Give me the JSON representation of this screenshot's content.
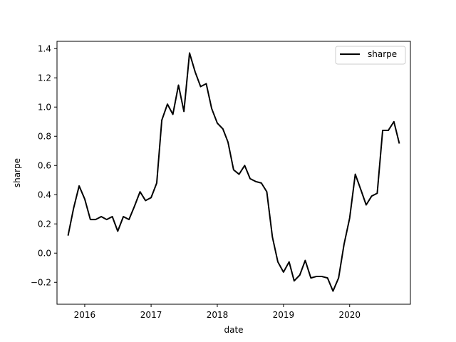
{
  "chart_data": {
    "type": "line",
    "title": "",
    "xlabel": "date",
    "ylabel": "sharpe",
    "xlim": [
      "2015-08-01",
      "2020-12-01"
    ],
    "ylim": [
      -0.35,
      1.45
    ],
    "xticks": [
      {
        "date": "2016-01-01",
        "label": "2016"
      },
      {
        "date": "2017-01-01",
        "label": "2017"
      },
      {
        "date": "2018-01-01",
        "label": "2018"
      },
      {
        "date": "2019-01-01",
        "label": "2019"
      },
      {
        "date": "2020-01-01",
        "label": "2020"
      }
    ],
    "yticks": [
      {
        "value": -0.2,
        "label": "−0.2"
      },
      {
        "value": 0.0,
        "label": "0.0"
      },
      {
        "value": 0.2,
        "label": "0.2"
      },
      {
        "value": 0.4,
        "label": "0.4"
      },
      {
        "value": 0.6,
        "label": "0.6"
      },
      {
        "value": 0.8,
        "label": "0.8"
      },
      {
        "value": 1.0,
        "label": "1.0"
      },
      {
        "value": 1.2,
        "label": "1.2"
      },
      {
        "value": 1.4,
        "label": "1.4"
      }
    ],
    "grid": false,
    "legend": {
      "position": "top-right"
    },
    "series": [
      {
        "name": "sharpe",
        "color": "#000000",
        "points": [
          {
            "x": "2015-10-01",
            "y": 0.12
          },
          {
            "x": "2015-11-01",
            "y": 0.31
          },
          {
            "x": "2015-12-01",
            "y": 0.46
          },
          {
            "x": "2016-01-01",
            "y": 0.37
          },
          {
            "x": "2016-02-01",
            "y": 0.23
          },
          {
            "x": "2016-03-01",
            "y": 0.23
          },
          {
            "x": "2016-04-01",
            "y": 0.25
          },
          {
            "x": "2016-05-01",
            "y": 0.23
          },
          {
            "x": "2016-06-01",
            "y": 0.25
          },
          {
            "x": "2016-07-01",
            "y": 0.15
          },
          {
            "x": "2016-08-01",
            "y": 0.25
          },
          {
            "x": "2016-09-01",
            "y": 0.23
          },
          {
            "x": "2016-10-01",
            "y": 0.32
          },
          {
            "x": "2016-11-01",
            "y": 0.42
          },
          {
            "x": "2016-12-01",
            "y": 0.36
          },
          {
            "x": "2017-01-01",
            "y": 0.38
          },
          {
            "x": "2017-02-01",
            "y": 0.48
          },
          {
            "x": "2017-03-01",
            "y": 0.91
          },
          {
            "x": "2017-04-01",
            "y": 1.02
          },
          {
            "x": "2017-05-01",
            "y": 0.95
          },
          {
            "x": "2017-06-01",
            "y": 1.15
          },
          {
            "x": "2017-07-01",
            "y": 0.97
          },
          {
            "x": "2017-08-01",
            "y": 1.37
          },
          {
            "x": "2017-09-01",
            "y": 1.24
          },
          {
            "x": "2017-10-01",
            "y": 1.14
          },
          {
            "x": "2017-11-01",
            "y": 1.16
          },
          {
            "x": "2017-12-01",
            "y": 0.99
          },
          {
            "x": "2018-01-01",
            "y": 0.89
          },
          {
            "x": "2018-02-01",
            "y": 0.85
          },
          {
            "x": "2018-03-01",
            "y": 0.76
          },
          {
            "x": "2018-04-01",
            "y": 0.57
          },
          {
            "x": "2018-05-01",
            "y": 0.54
          },
          {
            "x": "2018-06-01",
            "y": 0.6
          },
          {
            "x": "2018-07-01",
            "y": 0.51
          },
          {
            "x": "2018-08-01",
            "y": 0.49
          },
          {
            "x": "2018-09-01",
            "y": 0.48
          },
          {
            "x": "2018-10-01",
            "y": 0.42
          },
          {
            "x": "2018-11-01",
            "y": 0.11
          },
          {
            "x": "2018-12-01",
            "y": -0.06
          },
          {
            "x": "2019-01-01",
            "y": -0.13
          },
          {
            "x": "2019-02-01",
            "y": -0.06
          },
          {
            "x": "2019-03-01",
            "y": -0.19
          },
          {
            "x": "2019-04-01",
            "y": -0.15
          },
          {
            "x": "2019-05-01",
            "y": -0.05
          },
          {
            "x": "2019-06-01",
            "y": -0.17
          },
          {
            "x": "2019-07-01",
            "y": -0.16
          },
          {
            "x": "2019-08-01",
            "y": -0.16
          },
          {
            "x": "2019-09-01",
            "y": -0.17
          },
          {
            "x": "2019-10-01",
            "y": -0.26
          },
          {
            "x": "2019-11-01",
            "y": -0.17
          },
          {
            "x": "2019-12-01",
            "y": 0.06
          },
          {
            "x": "2020-01-01",
            "y": 0.24
          },
          {
            "x": "2020-02-01",
            "y": 0.54
          },
          {
            "x": "2020-03-01",
            "y": 0.44
          },
          {
            "x": "2020-04-01",
            "y": 0.33
          },
          {
            "x": "2020-05-01",
            "y": 0.39
          },
          {
            "x": "2020-06-01",
            "y": 0.41
          },
          {
            "x": "2020-07-01",
            "y": 0.84
          },
          {
            "x": "2020-08-01",
            "y": 0.84
          },
          {
            "x": "2020-09-01",
            "y": 0.9
          },
          {
            "x": "2020-10-01",
            "y": 0.75
          }
        ]
      }
    ]
  }
}
